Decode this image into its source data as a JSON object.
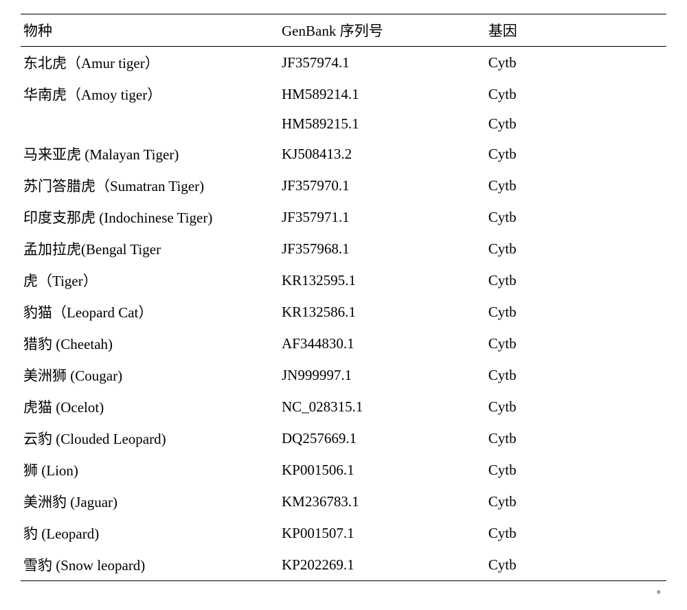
{
  "table": {
    "headers": {
      "species": "物种",
      "genbank": "GenBank 序列号",
      "gene": "基因"
    },
    "rows": [
      {
        "species": "东北虎（Amur tiger）",
        "genbank": "JF357974.1",
        "gene": "Cytb"
      },
      {
        "species": "华南虎（Amoy tiger）",
        "genbank": "HM589214.1",
        "gene": "Cytb"
      },
      {
        "species": "",
        "genbank": "HM589215.1",
        "gene": "Cytb"
      },
      {
        "species": "马来亚虎 (Malayan Tiger)",
        "genbank": "KJ508413.2",
        "gene": "Cytb"
      },
      {
        "species": "苏门答腊虎（Sumatran Tiger)",
        "genbank": "JF357970.1",
        "gene": "Cytb"
      },
      {
        "species": "印度支那虎 (Indochinese Tiger)",
        "genbank": "JF357971.1",
        "gene": "Cytb"
      },
      {
        "species": "孟加拉虎(Bengal Tiger",
        "genbank": "JF357968.1",
        "gene": "Cytb"
      },
      {
        "species": "虎（Tiger）",
        "genbank": "KR132595.1",
        "gene": "Cytb"
      },
      {
        "species": "豹猫（Leopard Cat）",
        "genbank": "KR132586.1",
        "gene": "Cytb"
      },
      {
        "species": "猎豹 (Cheetah)",
        "genbank": "AF344830.1",
        "gene": "Cytb"
      },
      {
        "species": "美洲狮 (Cougar)",
        "genbank": "JN999997.1",
        "gene": "Cytb"
      },
      {
        "species": "虎猫 (Ocelot)",
        "genbank": "NC_028315.1",
        "gene": "Cytb"
      },
      {
        "species": "云豹 (Clouded Leopard)",
        "genbank": "DQ257669.1",
        "gene": "Cytb"
      },
      {
        "species": "狮 (Lion)",
        "genbank": "KP001506.1",
        "gene": "Cytb"
      },
      {
        "species": "美洲豹 (Jaguar)",
        "genbank": "KM236783.1",
        "gene": "Cytb"
      },
      {
        "species": "豹 (Leopard)",
        "genbank": "KP001507.1",
        "gene": "Cytb"
      },
      {
        "species": "雪豹 (Snow leopard)",
        "genbank": "KP202269.1",
        "gene": "Cytb"
      }
    ]
  },
  "trailing_mark": "。",
  "style": {
    "font_family": "SimSun, Times New Roman, serif",
    "font_size": 21,
    "text_color": "#000000",
    "background_color": "#ffffff",
    "border_color": "#000000",
    "border_width": 1.5,
    "col_widths": {
      "species": "40%",
      "genbank": "32%",
      "gene": "28%"
    }
  }
}
